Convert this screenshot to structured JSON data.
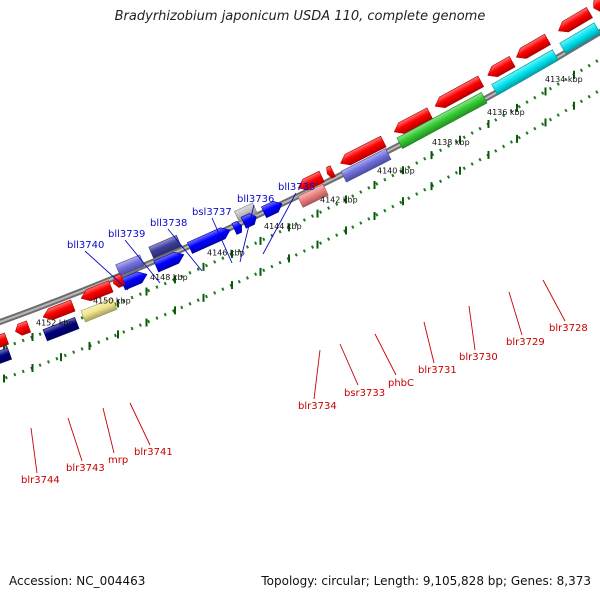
{
  "title": "Bradyrhizobium japonicum USDA 110, complete genome",
  "footer": {
    "accession": "Accession: NC_004463",
    "topology": "Topology: circular; Length: 9,105,828 bp; Genes: 8,373"
  },
  "ruler_ticks": [
    "4134 kbp",
    "4136 kbp",
    "4138 kbp",
    "4140 kbp",
    "4142 kbp",
    "4144 kbp",
    "4146 kbp",
    "4148 kbp",
    "4150 kbp",
    "4152 kbp"
  ],
  "colors": {
    "backbone": "#8a8a8a",
    "ruler": "#1f7a1f",
    "upper_label": "#0a0ac8",
    "lower_label": "#c80000",
    "red": "#ff0000",
    "light_red": "#f08080",
    "blue": "#0000ff",
    "light_blue": "#7070e0",
    "dark_blue": "#000080",
    "slate": "#3f3f9f",
    "grey": "#c0c0c0",
    "green": "#33cc33",
    "cyan": "#00e5f0",
    "khaki": "#f0e68c"
  },
  "upper_genes": [
    "bll3740",
    "bll3739",
    "bll3738",
    "bsl3737",
    "bll3736",
    "bll3735"
  ],
  "lower_genes": [
    "blr3744",
    "blr3743",
    "mrp",
    "blr3741",
    "blr3734",
    "bsr3733",
    "phbC",
    "blr3731",
    "blr3730",
    "blr3729",
    "blr3728"
  ]
}
